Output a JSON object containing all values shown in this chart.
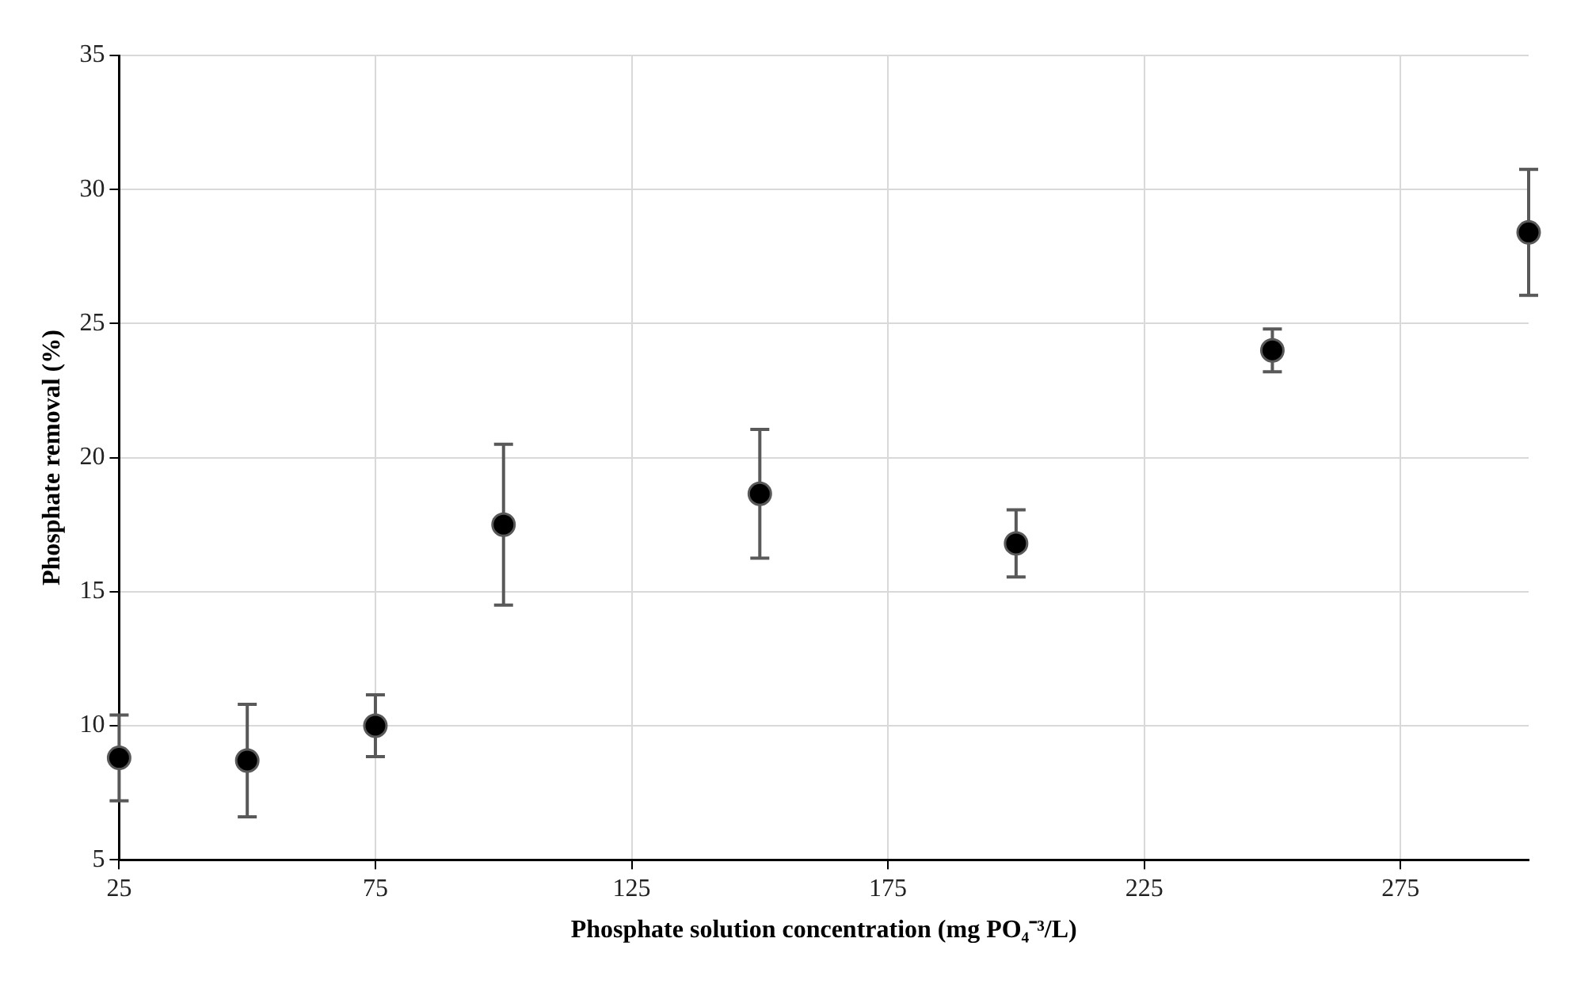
{
  "chart_data": {
    "type": "scatter",
    "xlabel": "Phosphate solution concentration (mg PO₄⁻³/L)",
    "ylabel": "Phosphate removal (%)",
    "x": [
      25,
      50,
      75,
      100,
      150,
      200,
      250,
      300
    ],
    "series": [
      {
        "color": "#000000",
        "values": [
          8.8,
          8.7,
          10.0,
          17.5,
          18.65,
          16.8,
          24.0,
          28.4
        ],
        "errors": [
          1.6,
          2.1,
          1.15,
          3.0,
          2.4,
          1.25,
          0.8,
          2.35
        ]
      }
    ],
    "xlim": [
      25,
      300
    ],
    "xticks": [
      25,
      75,
      125,
      175,
      225,
      275
    ],
    "ylim": [
      5,
      35
    ],
    "yticks": [
      5,
      10,
      15,
      20,
      25,
      30,
      35
    ],
    "grid": true,
    "legend": false,
    "marker": "circle"
  }
}
